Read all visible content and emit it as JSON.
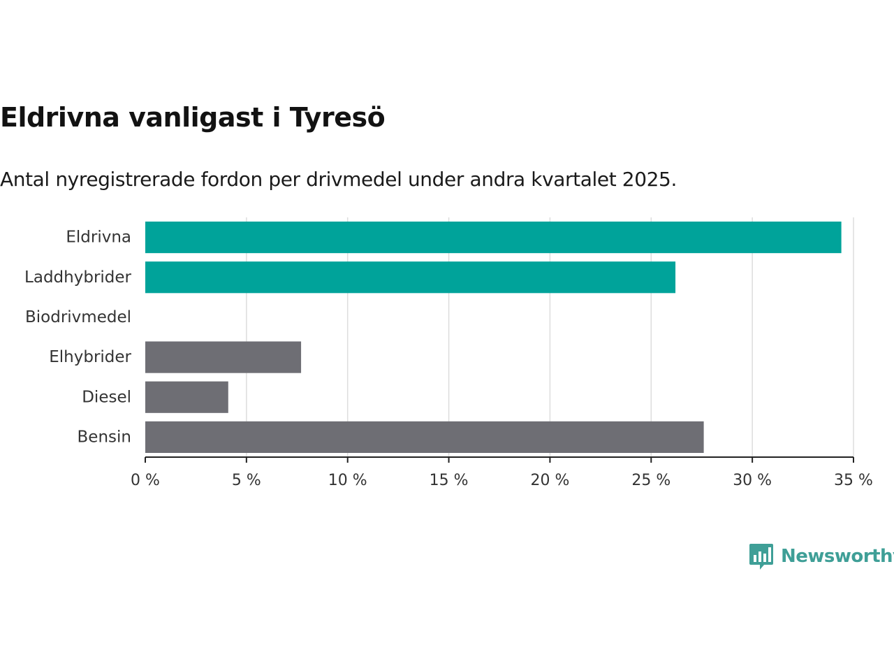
{
  "title": "Eldrivna vanligast i Tyresö",
  "subtitle": "Antal nyregistrerade fordon per drivmedel under andra kvartalet 2025.",
  "brand": {
    "name": "Newsworthy",
    "color": "#3f9f97",
    "icon": "bar-chart-speech-bubble-icon"
  },
  "chart_data": {
    "type": "bar",
    "orientation": "horizontal",
    "categories": [
      "Eldrivna",
      "Laddhybrider",
      "Biodrivmedel",
      "Elhybrider",
      "Diesel",
      "Bensin"
    ],
    "values": [
      34.4,
      26.2,
      0,
      7.7,
      4.1,
      27.6
    ],
    "colors": [
      "#00a39a",
      "#00a39a",
      "#6e6e74",
      "#6e6e74",
      "#6e6e74",
      "#6e6e74"
    ],
    "xlim": [
      0,
      35
    ],
    "xticks": [
      0,
      5,
      10,
      15,
      20,
      25,
      30,
      35
    ],
    "tick_suffix": " %",
    "grid": true,
    "gridline_color": "#dddddd",
    "axis_color": "#222222"
  }
}
